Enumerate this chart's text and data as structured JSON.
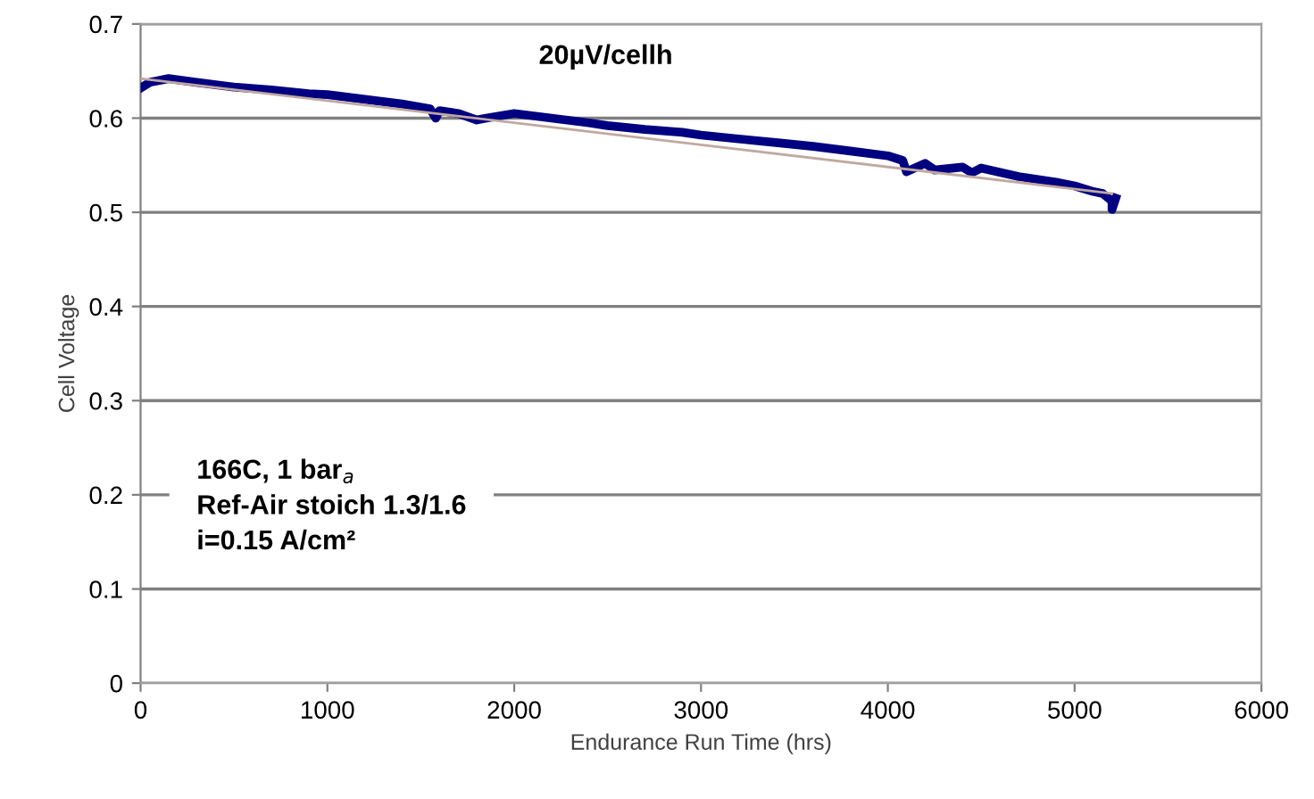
{
  "chart_data": {
    "type": "line",
    "xlabel": "Endurance Run Time (hrs)",
    "ylabel": "Cell Voltage",
    "xlim": [
      0,
      6000
    ],
    "xticks": [
      0,
      1000,
      2000,
      3000,
      4000,
      5000,
      6000
    ],
    "ylim": [
      0,
      0.7
    ],
    "yticks": [
      0,
      0.1,
      0.2,
      0.3,
      0.4,
      0.5,
      0.6,
      0.7
    ],
    "grid": "y",
    "legend": false,
    "marker": "none",
    "line_style": "solid",
    "annotations": [
      "20µV/cellh",
      "166C, 1 bar$_{a}$\nRef-Air stoich 1.3/1.6\ni=0.15 A/cm²"
    ],
    "series": [
      {
        "color": "#000080",
        "x": [
          0,
          50,
          150,
          300,
          500,
          700,
          900,
          1000,
          1200,
          1400,
          1550,
          1580,
          1600,
          1700,
          1800,
          1850,
          2000,
          2200,
          2400,
          2500,
          2700,
          2900,
          3000,
          3200,
          3400,
          3600,
          3800,
          4000,
          4080,
          4100,
          4200,
          4250,
          4400,
          4450,
          4500,
          4700,
          4900,
          5000,
          5100,
          5150,
          5200,
          5200,
          5220
        ],
        "values": [
          0.632,
          0.638,
          0.642,
          0.638,
          0.633,
          0.63,
          0.626,
          0.625,
          0.62,
          0.615,
          0.61,
          0.6,
          0.608,
          0.605,
          0.598,
          0.6,
          0.605,
          0.6,
          0.595,
          0.592,
          0.588,
          0.585,
          0.582,
          0.578,
          0.574,
          0.57,
          0.565,
          0.56,
          0.555,
          0.543,
          0.552,
          0.545,
          0.548,
          0.542,
          0.547,
          0.538,
          0.532,
          0.528,
          0.522,
          0.52,
          0.512,
          0.503,
          0.515
        ]
      },
      {
        "color": "#c0a8a0",
        "x": [
          0,
          5200
        ],
        "values": [
          0.642,
          0.52
        ]
      }
    ]
  }
}
